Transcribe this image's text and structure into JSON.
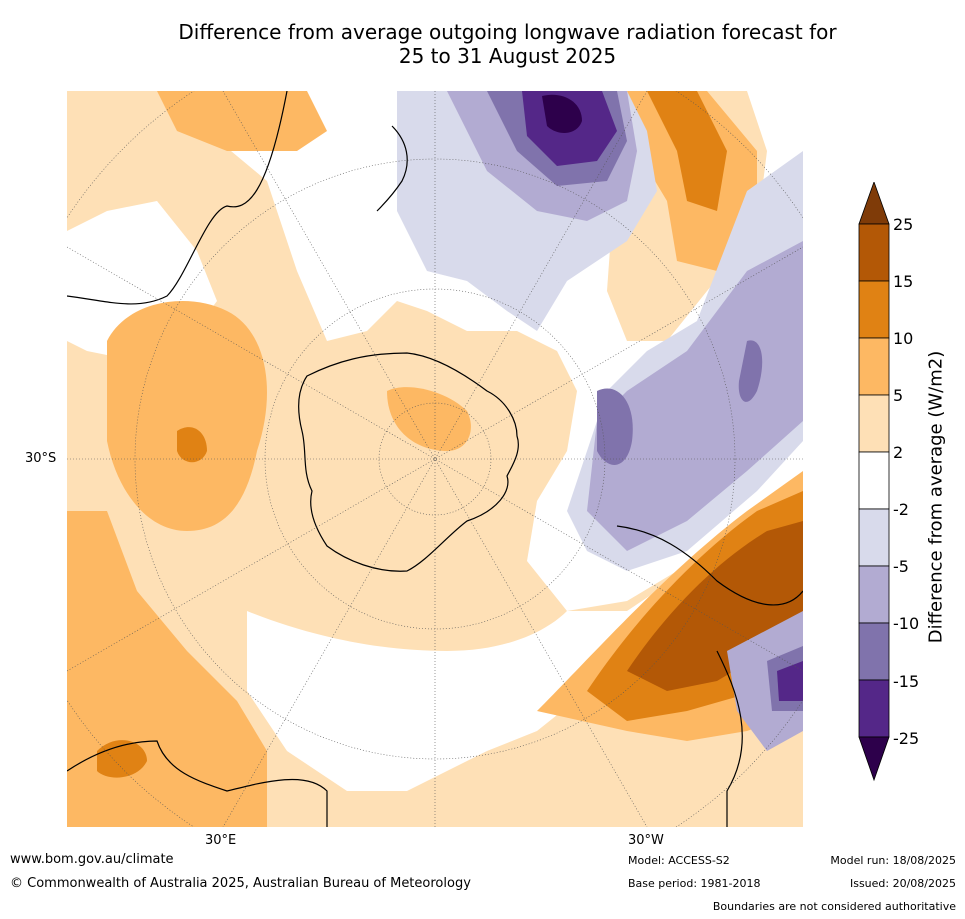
{
  "title": {
    "line1": "Difference from average outgoing longwave radiation forecast for",
    "line2": "25 to 31 August 2025"
  },
  "map": {
    "projection": "south-polar-stereographic",
    "lat_label": "30°S",
    "lon_labels": [
      "30°E",
      "30°W"
    ]
  },
  "legend": {
    "label": "Difference from average (W/m2)",
    "ticks": [
      "25",
      "15",
      "10",
      "5",
      "2",
      "-2",
      "-5",
      "-10",
      "-15",
      "-25"
    ],
    "colors": [
      "#7f3b08",
      "#b35806",
      "#e08214",
      "#fdb863",
      "#fee0b6",
      "#ffffff",
      "#d8daeb",
      "#b2abd2",
      "#8073ac",
      "#542788",
      "#2d004b"
    ]
  },
  "footer": {
    "url": "www.bom.gov.au/climate",
    "copyright": "© Commonwealth of Australia 2025, Australian Bureau of Meteorology",
    "model": "Model: ACCESS-S2",
    "base_period": "Base period: 1981-2018",
    "model_run": "Model run: 18/08/2025",
    "issued": "Issued: 20/08/2025",
    "disclaimer": "Boundaries are not considered authoritative"
  }
}
